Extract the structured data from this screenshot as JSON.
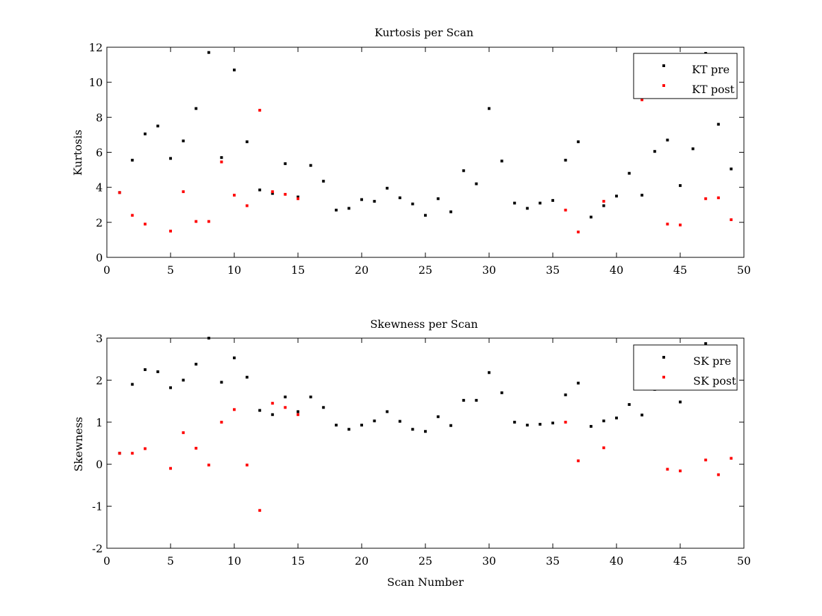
{
  "chart_data": [
    {
      "type": "scatter",
      "title": "Kurtosis per Scan",
      "xlabel": "",
      "ylabel": "Kurtosis",
      "xlim": [
        0,
        50
      ],
      "ylim": [
        0,
        12
      ],
      "xticks": [
        0,
        5,
        10,
        15,
        20,
        25,
        30,
        35,
        40,
        45,
        50
      ],
      "yticks": [
        0,
        2,
        4,
        6,
        8,
        10,
        12
      ],
      "grid": false,
      "legend_position": "top-right",
      "series": [
        {
          "name": "KT pre",
          "color": "#000000",
          "x": [
            1,
            2,
            3,
            4,
            5,
            6,
            7,
            8,
            9,
            10,
            11,
            12,
            13,
            14,
            15,
            16,
            17,
            18,
            19,
            20,
            21,
            22,
            23,
            24,
            25,
            26,
            27,
            28,
            29,
            30,
            31,
            32,
            33,
            34,
            35,
            36,
            37,
            38,
            39,
            40,
            41,
            42,
            43,
            44,
            45,
            46,
            47,
            48,
            49
          ],
          "y": [
            3.7,
            5.55,
            7.05,
            7.5,
            5.65,
            6.65,
            8.5,
            11.7,
            5.7,
            10.7,
            6.6,
            3.85,
            3.65,
            5.35,
            3.45,
            5.25,
            4.35,
            2.7,
            2.8,
            3.3,
            3.2,
            3.95,
            3.4,
            3.05,
            2.4,
            3.35,
            2.6,
            4.95,
            4.2,
            8.5,
            5.5,
            3.1,
            2.8,
            3.1,
            3.25,
            5.55,
            6.6,
            2.3,
            2.95,
            3.5,
            4.8,
            3.55,
            6.05,
            6.7,
            4.1,
            6.2,
            11.65,
            7.6,
            5.05
          ]
        },
        {
          "name": "KT post",
          "color": "#ff0000",
          "x": [
            1,
            2,
            3,
            5,
            6,
            7,
            8,
            9,
            10,
            11,
            12,
            13,
            14,
            15,
            36,
            37,
            39,
            42,
            44,
            45,
            47,
            48,
            49
          ],
          "y": [
            3.7,
            2.4,
            1.9,
            1.5,
            3.75,
            2.05,
            2.05,
            5.45,
            3.55,
            2.95,
            8.4,
            3.75,
            3.6,
            3.35,
            2.7,
            1.45,
            3.2,
            9.0,
            1.9,
            1.85,
            3.35,
            3.4,
            2.15
          ]
        }
      ]
    },
    {
      "type": "scatter",
      "title": "Skewness per Scan",
      "xlabel": "Scan Number",
      "ylabel": "Skewness",
      "xlim": [
        0,
        50
      ],
      "ylim": [
        -2,
        3
      ],
      "xticks": [
        0,
        5,
        10,
        15,
        20,
        25,
        30,
        35,
        40,
        45,
        50
      ],
      "yticks": [
        -2,
        -1,
        0,
        1,
        2,
        3
      ],
      "grid": false,
      "legend_position": "top-right",
      "series": [
        {
          "name": "SK pre",
          "color": "#000000",
          "x": [
            1,
            2,
            3,
            4,
            5,
            6,
            7,
            8,
            9,
            10,
            11,
            12,
            13,
            14,
            15,
            16,
            17,
            18,
            19,
            20,
            21,
            22,
            23,
            24,
            25,
            26,
            27,
            28,
            29,
            30,
            31,
            32,
            33,
            34,
            35,
            36,
            37,
            38,
            39,
            40,
            41,
            42,
            43,
            44,
            45,
            46,
            47,
            48,
            49
          ],
          "y": [
            0.26,
            1.9,
            2.25,
            2.2,
            1.82,
            2.0,
            2.38,
            3.0,
            1.95,
            2.53,
            2.07,
            1.28,
            1.18,
            1.6,
            1.25,
            1.6,
            1.35,
            0.93,
            0.83,
            0.93,
            1.03,
            1.25,
            1.02,
            0.83,
            0.78,
            1.13,
            0.92,
            1.52,
            1.52,
            2.18,
            1.7,
            1.0,
            0.93,
            0.95,
            0.98,
            1.65,
            1.93,
            0.9,
            1.03,
            1.1,
            1.42,
            1.17,
            1.78,
            2.0,
            1.48,
            2.0,
            2.87,
            2.0,
            1.9
          ]
        },
        {
          "name": "SK post",
          "color": "#ff0000",
          "x": [
            1,
            2,
            3,
            5,
            6,
            7,
            8,
            9,
            10,
            11,
            12,
            13,
            14,
            15,
            36,
            37,
            39,
            44,
            45,
            47,
            48,
            49
          ],
          "y": [
            0.26,
            0.26,
            0.37,
            -0.1,
            0.75,
            0.38,
            -0.02,
            1.0,
            1.3,
            -0.02,
            -1.1,
            1.45,
            1.35,
            1.18,
            1.0,
            0.08,
            0.39,
            -0.12,
            -0.16,
            0.1,
            -0.25,
            0.14
          ]
        }
      ]
    }
  ]
}
